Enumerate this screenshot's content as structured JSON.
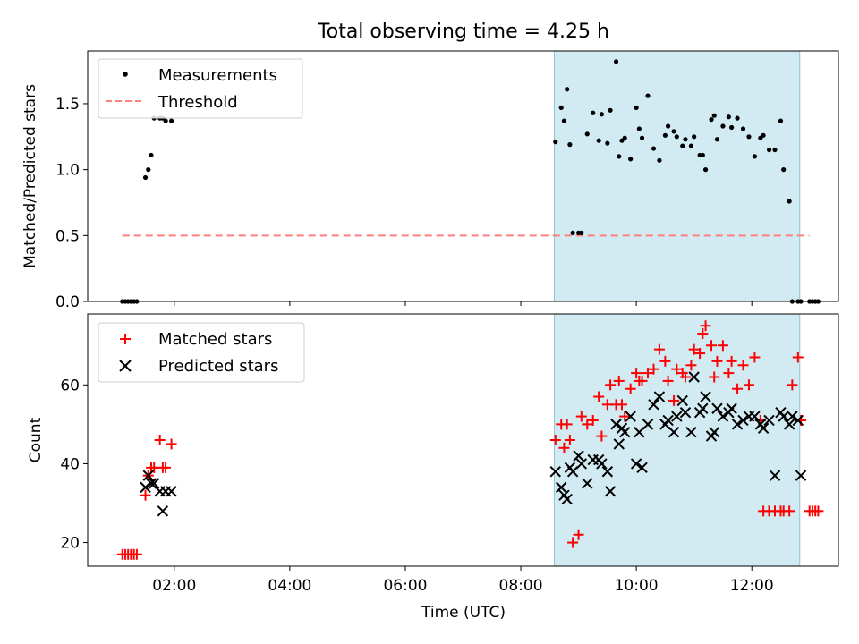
{
  "chart_data": [
    {
      "type": "scatter",
      "title": "Total observing time = 4.25 h",
      "ylabel": "Matched/Predicted stars",
      "ylim": [
        0,
        1.9
      ],
      "yticks": [
        0.0,
        0.5,
        1.0,
        1.5
      ],
      "ytick_labels": [
        "0.0",
        "0.5",
        "1.0",
        "1.5"
      ],
      "xlim_hours": [
        0.5,
        13.5
      ],
      "legend": [
        "Measurements",
        "Threshold"
      ],
      "legend_position": "upper-left",
      "highlight_band_hours": [
        8.58,
        12.83
      ],
      "highlight_color": "#add8e6",
      "threshold": {
        "value": 0.5,
        "x_range_hours": [
          1.1,
          13.0
        ],
        "color": "#ff7f7f"
      },
      "series": [
        {
          "name": "Measurements",
          "color": "#000000",
          "x_hours": [
            1.1,
            1.15,
            1.2,
            1.25,
            1.3,
            1.35,
            1.5,
            1.55,
            1.6,
            1.65,
            1.75,
            1.8,
            1.85,
            1.95,
            8.6,
            8.7,
            8.75,
            8.8,
            8.85,
            8.9,
            9.0,
            9.05,
            9.15,
            9.25,
            9.35,
            9.4,
            9.5,
            9.55,
            9.65,
            9.7,
            9.75,
            9.8,
            9.9,
            10.0,
            10.05,
            10.1,
            10.2,
            10.3,
            10.4,
            10.5,
            10.55,
            10.65,
            10.7,
            10.8,
            10.85,
            10.95,
            11.0,
            11.1,
            11.15,
            11.2,
            11.3,
            11.35,
            11.4,
            11.5,
            11.6,
            11.65,
            11.75,
            11.85,
            11.95,
            12.05,
            12.15,
            12.2,
            12.3,
            12.4,
            12.5,
            12.55,
            12.65,
            12.7,
            12.8,
            12.85,
            13.0,
            13.05,
            13.1,
            13.15
          ],
          "y": [
            0.0,
            0.0,
            0.0,
            0.0,
            0.0,
            0.0,
            0.94,
            1.0,
            1.11,
            1.39,
            1.39,
            1.39,
            1.37,
            1.37,
            1.21,
            1.47,
            1.37,
            1.61,
            1.19,
            0.52,
            0.52,
            0.52,
            1.27,
            1.43,
            1.22,
            1.42,
            1.2,
            1.45,
            1.82,
            1.1,
            1.22,
            1.24,
            1.08,
            1.47,
            1.31,
            1.24,
            1.56,
            1.16,
            1.07,
            1.26,
            1.33,
            1.29,
            1.25,
            1.18,
            1.23,
            1.18,
            1.25,
            1.11,
            1.11,
            1.0,
            1.38,
            1.41,
            1.23,
            1.33,
            1.4,
            1.32,
            1.39,
            1.31,
            1.25,
            1.1,
            1.24,
            1.26,
            1.15,
            1.15,
            1.37,
            1.0,
            0.76,
            0.0,
            0.0,
            0.0,
            0.0,
            0.0,
            0.0,
            0.0
          ]
        }
      ]
    },
    {
      "type": "scatter",
      "xlabel": "Time (UTC)",
      "ylabel": "Count",
      "ylim": [
        14,
        78
      ],
      "yticks": [
        20,
        40,
        60
      ],
      "ytick_labels": [
        "20",
        "40",
        "60"
      ],
      "xlim_hours": [
        0.5,
        13.5
      ],
      "xticks_hours": [
        2,
        4,
        6,
        8,
        10,
        12
      ],
      "xtick_labels": [
        "02:00",
        "04:00",
        "06:00",
        "08:00",
        "10:00",
        "12:00"
      ],
      "legend": [
        "Matched stars",
        "Predicted stars"
      ],
      "legend_position": "upper-left",
      "highlight_band_hours": [
        8.58,
        12.83
      ],
      "highlight_color": "#add8e6",
      "series": [
        {
          "name": "Matched stars",
          "marker": "plus",
          "color": "#ff0000",
          "x_hours": [
            1.1,
            1.15,
            1.2,
            1.25,
            1.3,
            1.35,
            1.5,
            1.55,
            1.6,
            1.65,
            1.75,
            1.8,
            1.85,
            1.95,
            8.6,
            8.7,
            8.75,
            8.8,
            8.85,
            8.9,
            9.0,
            9.05,
            9.15,
            9.25,
            9.35,
            9.4,
            9.5,
            9.55,
            9.65,
            9.7,
            9.75,
            9.8,
            9.9,
            10.0,
            10.05,
            10.1,
            10.2,
            10.3,
            10.4,
            10.5,
            10.55,
            10.65,
            10.7,
            10.8,
            10.85,
            10.95,
            11.0,
            11.1,
            11.15,
            11.2,
            11.3,
            11.35,
            11.4,
            11.5,
            11.6,
            11.65,
            11.75,
            11.85,
            11.95,
            12.05,
            12.15,
            12.2,
            12.3,
            12.4,
            12.5,
            12.55,
            12.65,
            12.7,
            12.8,
            12.85,
            13.0,
            13.05,
            13.1,
            13.15
          ],
          "y": [
            17,
            17,
            17,
            17,
            17,
            17,
            32,
            37,
            39,
            39,
            46,
            39,
            39,
            45,
            46,
            50,
            44,
            50,
            46,
            20,
            22,
            52,
            50,
            51,
            57,
            47,
            55,
            60,
            55,
            61,
            55,
            52,
            59,
            63,
            61,
            61,
            63,
            64,
            69,
            66,
            61,
            56,
            64,
            63,
            62,
            65,
            69,
            68,
            73,
            75,
            70,
            62,
            66,
            70,
            63,
            66,
            59,
            65,
            60,
            67,
            51,
            28,
            28,
            28,
            28,
            28,
            28,
            60,
            67,
            51,
            28,
            28,
            28,
            28
          ]
        },
        {
          "name": "Predicted stars",
          "marker": "x",
          "color": "#000000",
          "x_hours": [
            1.5,
            1.55,
            1.6,
            1.65,
            1.75,
            1.8,
            1.85,
            1.95,
            8.6,
            8.7,
            8.75,
            8.8,
            8.85,
            8.9,
            9.0,
            9.05,
            9.15,
            9.25,
            9.35,
            9.4,
            9.5,
            9.55,
            9.65,
            9.7,
            9.75,
            9.8,
            9.9,
            10.0,
            10.05,
            10.1,
            10.2,
            10.3,
            10.4,
            10.5,
            10.55,
            10.65,
            10.7,
            10.8,
            10.85,
            10.95,
            11.0,
            11.1,
            11.15,
            11.2,
            11.3,
            11.35,
            11.4,
            11.5,
            11.6,
            11.65,
            11.75,
            11.85,
            11.95,
            12.05,
            12.15,
            12.2,
            12.3,
            12.4,
            12.5,
            12.55,
            12.65,
            12.7,
            12.8,
            12.85
          ],
          "y": [
            34,
            37,
            35,
            35,
            33,
            28,
            33,
            33,
            38,
            34,
            32,
            31,
            39,
            38,
            42,
            40,
            35,
            41,
            41,
            40,
            38,
            33,
            50,
            45,
            49,
            48,
            52,
            40,
            48,
            39,
            50,
            55,
            57,
            50,
            51,
            48,
            52,
            56,
            53,
            48,
            62,
            53,
            54,
            57,
            47,
            48,
            54,
            52,
            53,
            54,
            50,
            51,
            52,
            52,
            50,
            49,
            51,
            37,
            53,
            52,
            50,
            52,
            51,
            37
          ]
        }
      ]
    }
  ]
}
